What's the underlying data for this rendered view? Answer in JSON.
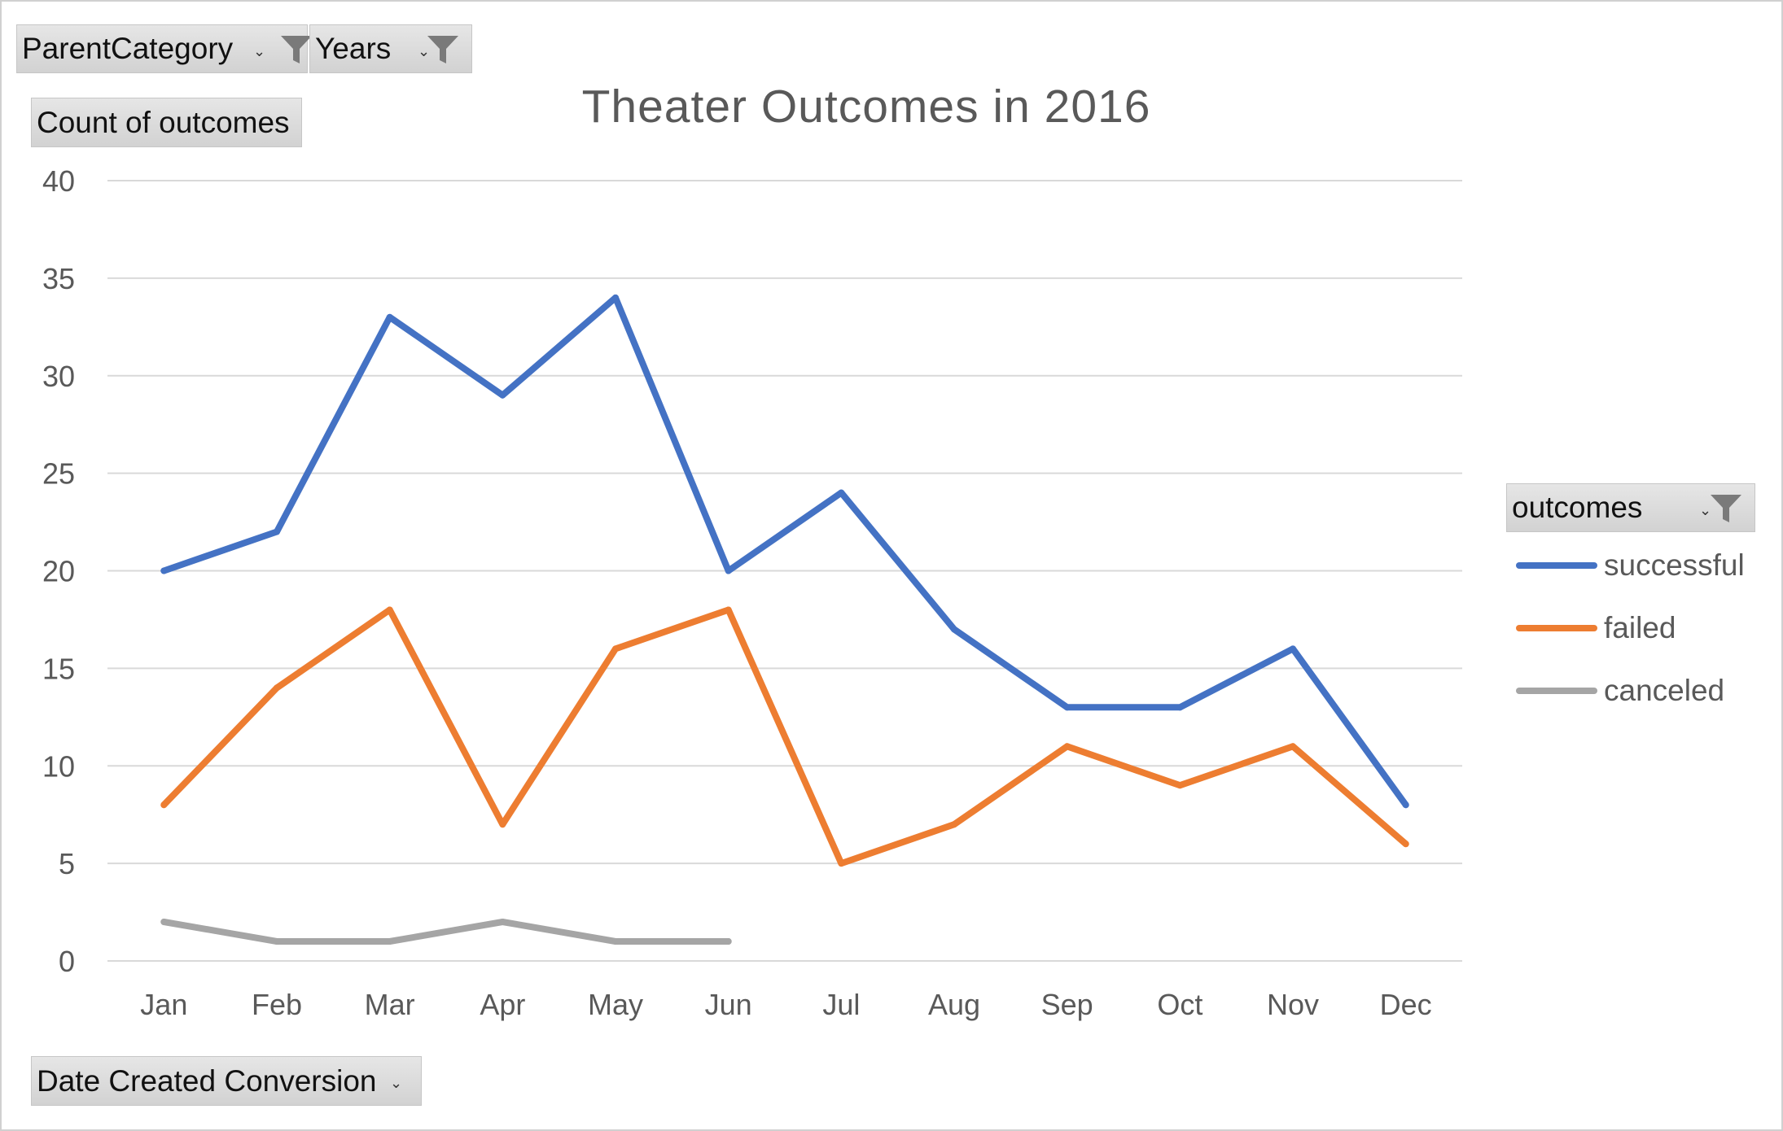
{
  "filters": {
    "parent_category": "ParentCategory",
    "years": "Years",
    "value_field": "Count of outcomes",
    "legend_field": "outcomes",
    "axis_field": "Date Created Conversion"
  },
  "colors": {
    "successful": "#4472C4",
    "failed": "#ED7D31",
    "canceled": "#A5A5A5",
    "gridline": "#D9D9D9",
    "text": "#595959"
  },
  "chart_data": {
    "type": "line",
    "title": "Theater Outcomes in 2016",
    "xlabel": "",
    "ylabel": "",
    "categories": [
      "Jan",
      "Feb",
      "Mar",
      "Apr",
      "May",
      "Jun",
      "Jul",
      "Aug",
      "Sep",
      "Oct",
      "Nov",
      "Dec"
    ],
    "ylim": [
      0,
      40
    ],
    "yticks": [
      0,
      5,
      10,
      15,
      20,
      25,
      30,
      35,
      40
    ],
    "grid": true,
    "legend_position": "right",
    "series": [
      {
        "name": "successful",
        "color": "#4472C4",
        "values": [
          20,
          22,
          33,
          29,
          34,
          20,
          24,
          17,
          13,
          13,
          16,
          8
        ]
      },
      {
        "name": "failed",
        "color": "#ED7D31",
        "values": [
          8,
          14,
          18,
          7,
          16,
          18,
          5,
          7,
          11,
          9,
          11,
          6
        ]
      },
      {
        "name": "canceled",
        "color": "#A5A5A5",
        "values": [
          2,
          1,
          1,
          2,
          1,
          1,
          null,
          null,
          null,
          null,
          null,
          null
        ]
      }
    ]
  }
}
